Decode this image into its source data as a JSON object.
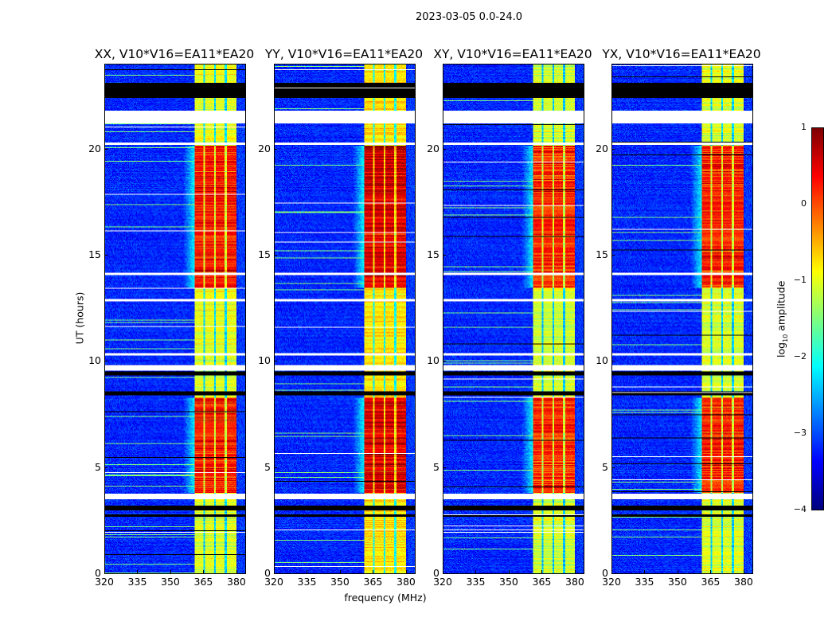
{
  "suptitle": "2023-03-05 0.0-24.0",
  "chart_data": {
    "type": "heatmap",
    "panels": [
      {
        "title": "XX, V10*V16=EA11*EA20",
        "key": "XX",
        "band_boost": 0.0
      },
      {
        "title": "YY, V10*V16=EA11*EA20",
        "key": "YY",
        "band_boost": 0.25
      },
      {
        "title": "XY, V10*V16=EA11*EA20",
        "key": "XY",
        "band_boost": -0.1
      },
      {
        "title": "YX, V10*V16=EA11*EA20",
        "key": "YX",
        "band_boost": -0.05
      }
    ],
    "xlabel": "frequency (MHz)",
    "ylabel": "UT (hours)",
    "xlim": [
      320,
      384
    ],
    "ylim": [
      0,
      24
    ],
    "xticks": [
      320,
      335,
      350,
      365,
      380
    ],
    "yticks": [
      0,
      5,
      10,
      15,
      20
    ],
    "bright_band_mhz": [
      360.5,
      380
    ],
    "band_dropout_channels_mhz": [
      365,
      370,
      375
    ],
    "flagged_white_hours": [
      [
        21.25,
        21.85
      ],
      [
        20.25,
        20.35
      ],
      [
        9.6,
        9.85
      ],
      [
        3.5,
        3.75
      ],
      [
        14.1,
        14.2
      ],
      [
        12.85,
        12.95
      ],
      [
        10.3,
        10.4
      ]
    ],
    "flagged_black_hours": [
      [
        22.45,
        23.15
      ],
      [
        9.35,
        9.55
      ],
      [
        8.4,
        8.6
      ],
      [
        3.0,
        3.2
      ],
      [
        2.7,
        2.8
      ]
    ],
    "active_hours": [
      [
        3.8,
        8.3
      ],
      [
        13.5,
        20.2
      ]
    ],
    "colorbar": {
      "label_main": "log",
      "label_sub": "10",
      "label_rest": " amplitude",
      "range": [
        -4,
        1
      ],
      "ticks": [
        "1",
        "0",
        "−1",
        "−2",
        "−3",
        "−4"
      ],
      "colormap": "jet"
    }
  }
}
